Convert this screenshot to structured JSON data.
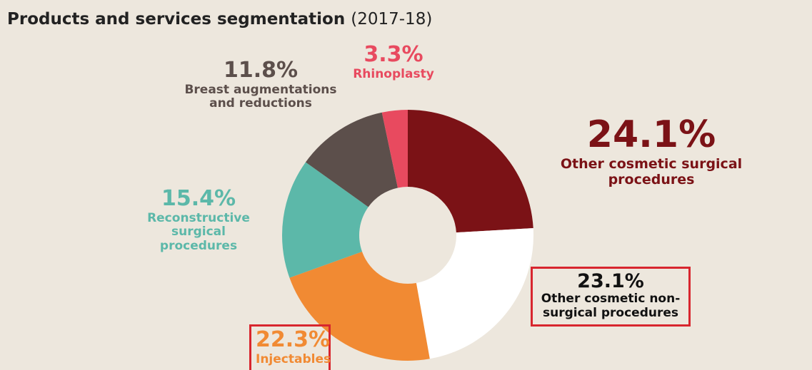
{
  "chart_data": {
    "type": "donut",
    "title": "Products and services segmentation",
    "subtitle": "(2017-18)",
    "categories": [
      "Other cosmetic surgical procedures",
      "Other cosmetic non-surgical procedures",
      "Injectables",
      "Reconstructive surgical procedures",
      "Breast augmentations and reductions",
      "Rhinoplasty"
    ],
    "values": [
      24.1,
      23.1,
      22.3,
      15.4,
      11.8,
      3.3
    ],
    "value_labels": [
      "24.1%",
      "23.1%",
      "22.3%",
      "15.4%",
      "11.8%",
      "3.3%"
    ],
    "colors": [
      "#7b1216",
      "#ffffff",
      "#f18a33",
      "#5cb8a9",
      "#5c4f4b",
      "#e84a5f"
    ]
  }
}
